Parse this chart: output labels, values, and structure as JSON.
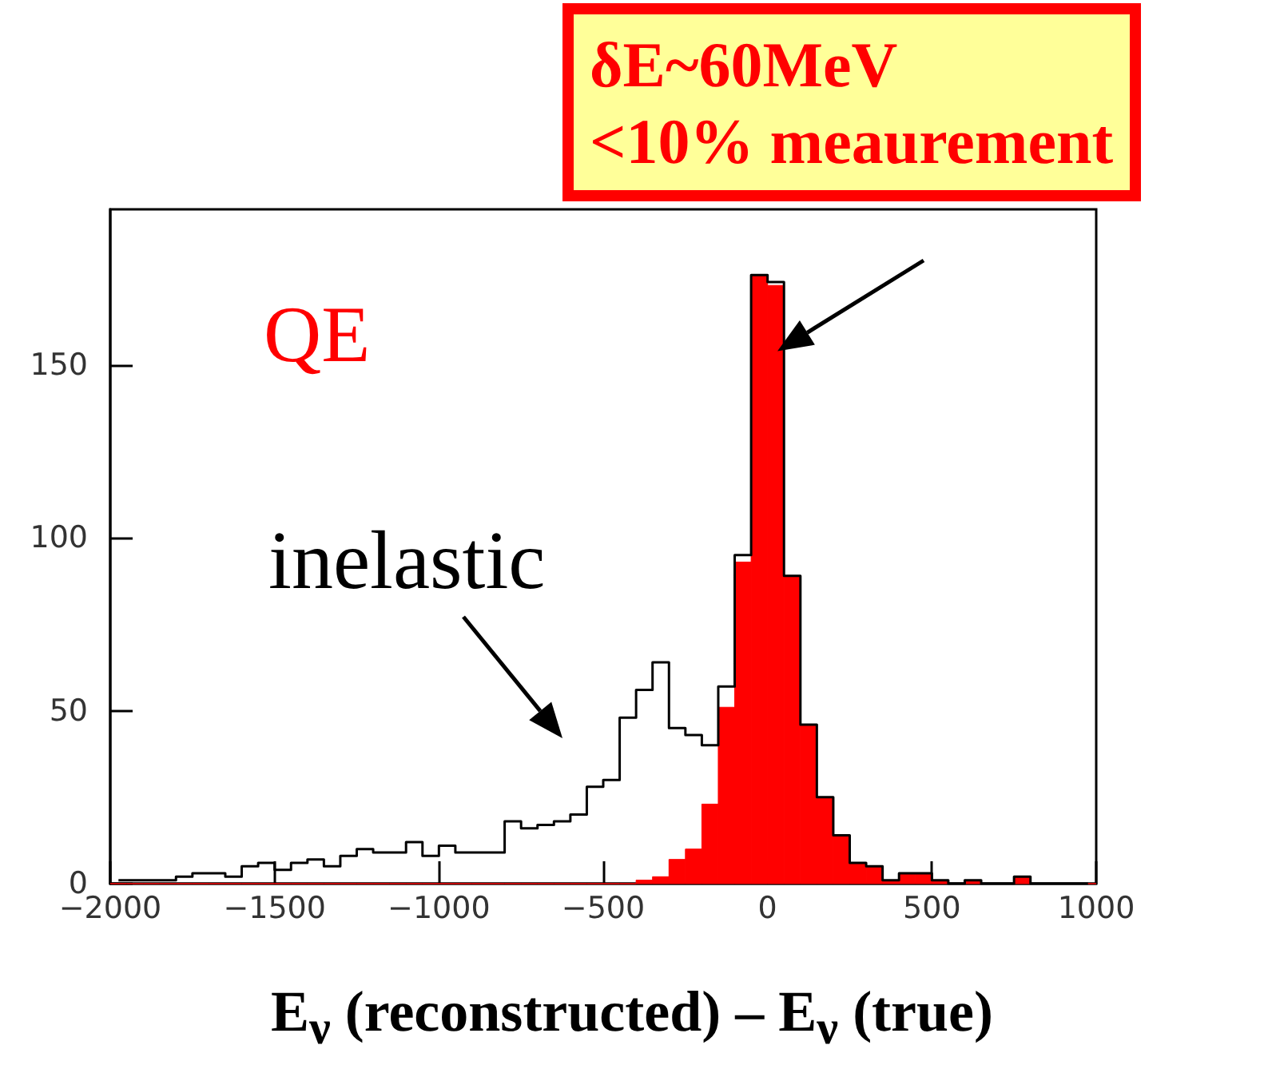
{
  "chart_data": {
    "type": "histogram",
    "xlabel": "E$_{ν}$ (reconstructed) – E$_{ν}$ (true)",
    "bins": [
      -2000,
      -1950,
      -1900,
      -1850,
      -1800,
      -1750,
      -1700,
      -1650,
      -1600,
      -1550,
      -1500,
      -1450,
      -1400,
      -1350,
      -1300,
      -1250,
      -1200,
      -1150,
      -1100,
      -1050,
      -1000,
      -950,
      -900,
      -850,
      -800,
      -750,
      -700,
      -650,
      -600,
      -550,
      -500,
      -450,
      -400,
      -350,
      -300,
      -250,
      -200,
      -150,
      -100,
      -50,
      0,
      50,
      100,
      150,
      200,
      250,
      300,
      350,
      400,
      450,
      500,
      550,
      600,
      650,
      700,
      750,
      800,
      850,
      900,
      950,
      1000
    ],
    "series": [
      {
        "color": "#ff0000",
        "values": [
          0,
          0,
          0,
          0,
          0,
          0,
          0,
          0,
          0,
          0,
          0,
          0,
          0,
          0,
          0,
          0,
          0,
          0,
          0,
          0,
          0,
          0,
          0,
          0,
          0,
          0,
          0,
          0,
          0,
          0,
          0,
          0,
          1,
          2,
          7,
          10,
          23,
          51,
          93,
          176,
          173,
          89,
          46,
          25,
          14,
          6,
          5,
          1,
          3,
          3,
          1,
          0,
          1,
          0,
          0,
          2,
          0,
          0,
          0,
          0
        ]
      },
      {
        "type": "step",
        "color": "#000000",
        "x": [
          -1975,
          -1925,
          -1875,
          -1825,
          -1775,
          -1725,
          -1675,
          -1625,
          -1575,
          -1525,
          -1475,
          -1425,
          -1375,
          -1325,
          -1275,
          -1225,
          -1175,
          -1125,
          -1075,
          -1025,
          -975,
          -925,
          -875,
          -825,
          -775,
          -725,
          -675,
          -625,
          -575,
          -525,
          -475,
          -425,
          -375,
          -325,
          -275,
          -225,
          -175,
          -125,
          -75,
          -25,
          25,
          75,
          125,
          175,
          225,
          275,
          325,
          375,
          425,
          475,
          525,
          575,
          625,
          675,
          725,
          775,
          825,
          875,
          925,
          975
        ],
        "values": [
          1,
          1,
          1,
          1,
          2,
          3,
          3,
          2,
          5,
          6,
          4,
          6,
          7,
          5,
          8,
          10,
          9,
          9,
          12,
          8,
          11,
          9,
          9,
          9,
          18,
          16,
          17,
          18,
          20,
          28,
          30,
          48,
          56,
          64,
          45,
          43,
          40,
          57,
          95,
          176,
          174,
          89,
          46,
          25,
          14,
          6,
          5,
          1,
          3,
          3,
          1,
          0,
          1,
          0,
          0,
          2,
          0,
          0,
          0,
          0
        ]
      }
    ],
    "xlim": [
      -2000,
      1000
    ],
    "xticks": [
      -2000,
      -1500,
      -1000,
      -500,
      0,
      500,
      1000
    ],
    "ylim": [
      0,
      195
    ],
    "yticks": [
      0,
      50,
      100,
      150
    ],
    "grid": false,
    "annotations": [
      "QE",
      "inelastic",
      {
        "text": "δE~60MeV\n<10% meaurement",
        "x": 30,
        "y": 154
      }
    ]
  }
}
